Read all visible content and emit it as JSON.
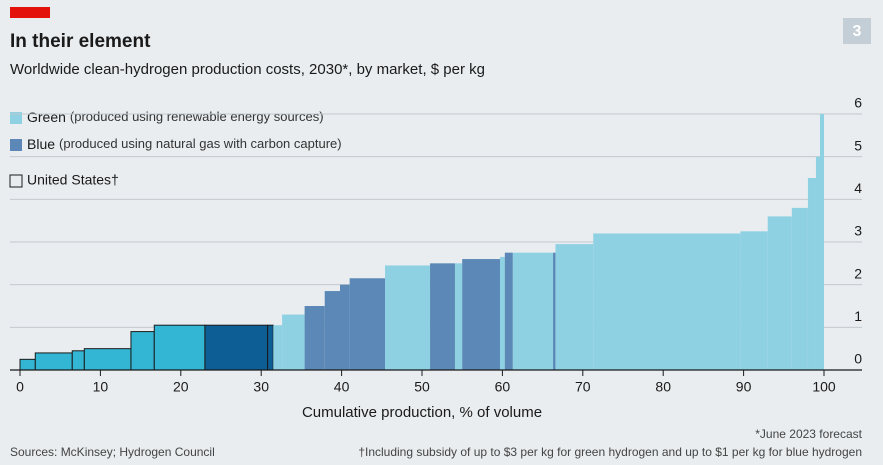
{
  "badge": "3",
  "chart_data": {
    "type": "cost-curve",
    "title": "In their element",
    "subtitle": "Worldwide clean-hydrogen production costs, 2030*, by market, $ per kg",
    "x_label": "Cumulative production, % of volume",
    "series": [
      {
        "name": "Green",
        "description": "(produced using renewable energy sources)",
        "color": "#8ed1e3",
        "us_color": "#33b6d3"
      },
      {
        "name": "Blue",
        "description": "(produced using natural gas with carbon capture)",
        "color": "#5b88b6",
        "us_color": "#0d5e95"
      }
    ],
    "us_legend": "United States†",
    "segments": [
      {
        "start": 0,
        "end": 1.9,
        "value": 0.25,
        "series": 0,
        "us": true
      },
      {
        "start": 1.9,
        "end": 6.5,
        "value": 0.4,
        "series": 0,
        "us": true
      },
      {
        "start": 6.5,
        "end": 8,
        "value": 0.45,
        "series": 0,
        "us": true
      },
      {
        "start": 8,
        "end": 13.8,
        "value": 0.5,
        "series": 0,
        "us": true
      },
      {
        "start": 13.8,
        "end": 16.7,
        "value": 0.9,
        "series": 0,
        "us": true
      },
      {
        "start": 16.7,
        "end": 23,
        "value": 1.05,
        "series": 0,
        "us": true
      },
      {
        "start": 23,
        "end": 30.8,
        "value": 1.05,
        "series": 1,
        "us": true
      },
      {
        "start": 30.8,
        "end": 31.5,
        "value": 1.05,
        "series": 1,
        "us": true
      },
      {
        "start": 31.5,
        "end": 32.6,
        "value": 1.05,
        "series": 0,
        "us": false
      },
      {
        "start": 32.6,
        "end": 35.4,
        "value": 1.3,
        "series": 0,
        "us": false
      },
      {
        "start": 35.4,
        "end": 37.9,
        "value": 1.5,
        "series": 1,
        "us": false
      },
      {
        "start": 37.9,
        "end": 39.8,
        "value": 1.85,
        "series": 1,
        "us": false
      },
      {
        "start": 39.8,
        "end": 41,
        "value": 2.0,
        "series": 1,
        "us": false
      },
      {
        "start": 41,
        "end": 45.4,
        "value": 2.15,
        "series": 1,
        "us": false
      },
      {
        "start": 45.4,
        "end": 51,
        "value": 2.45,
        "series": 0,
        "us": false
      },
      {
        "start": 51,
        "end": 54.1,
        "value": 2.5,
        "series": 1,
        "us": false
      },
      {
        "start": 54.1,
        "end": 55,
        "value": 2.5,
        "series": 0,
        "us": false
      },
      {
        "start": 55,
        "end": 59.7,
        "value": 2.6,
        "series": 1,
        "us": false
      },
      {
        "start": 59.7,
        "end": 60.3,
        "value": 2.65,
        "series": 0,
        "us": false
      },
      {
        "start": 60.3,
        "end": 61.3,
        "value": 2.75,
        "series": 1,
        "us": false
      },
      {
        "start": 61.3,
        "end": 66.3,
        "value": 2.75,
        "series": 0,
        "us": false
      },
      {
        "start": 66.3,
        "end": 66.6,
        "value": 2.75,
        "series": 1,
        "us": false
      },
      {
        "start": 66.6,
        "end": 71.3,
        "value": 2.95,
        "series": 0,
        "us": false
      },
      {
        "start": 71.3,
        "end": 89.6,
        "value": 3.2,
        "series": 0,
        "us": false
      },
      {
        "start": 89.6,
        "end": 93,
        "value": 3.25,
        "series": 0,
        "us": false
      },
      {
        "start": 93,
        "end": 96,
        "value": 3.6,
        "series": 0,
        "us": false
      },
      {
        "start": 96,
        "end": 98,
        "value": 3.8,
        "series": 0,
        "us": false
      },
      {
        "start": 98,
        "end": 99,
        "value": 4.5,
        "series": 0,
        "us": false
      },
      {
        "start": 99,
        "end": 99.5,
        "value": 5,
        "series": 0,
        "us": false
      },
      {
        "start": 99.5,
        "end": 100,
        "value": 6,
        "series": 0,
        "us": false
      }
    ],
    "xlim": [
      0,
      100
    ],
    "xticks": [
      0,
      10,
      20,
      30,
      40,
      50,
      60,
      70,
      80,
      90,
      100
    ],
    "ylim": [
      0,
      6
    ],
    "yticks": [
      0,
      1,
      2,
      3,
      4,
      5,
      6
    ],
    "grid": true,
    "footnote": "*June 2023 forecast",
    "source": "Sources: McKinsey; Hydrogen Council",
    "subsidy_note": "†Including subsidy of up to $3 per kg for green hydrogen and up to $1 per kg for blue hydrogen"
  }
}
